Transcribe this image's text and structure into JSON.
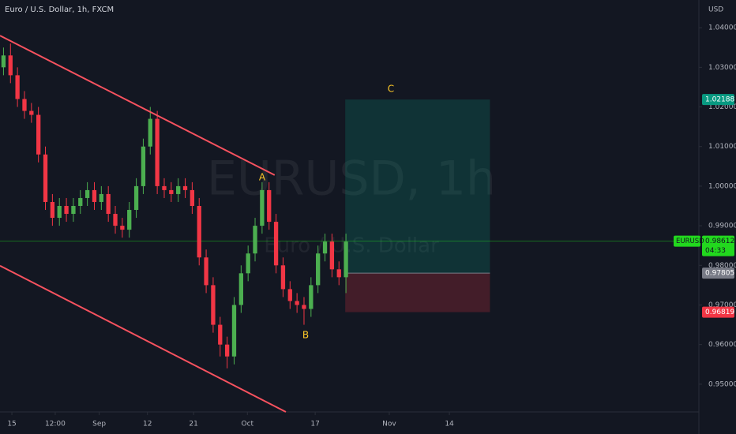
{
  "chart_data": {
    "type": "candlestick",
    "title": "Euro / U.S. Dollar, 1h, FXCM",
    "watermark": "EURUSD, 1h",
    "watermark_subtitle": "Euro / U.S. Dollar",
    "y_axis_unit": "USD",
    "x": [
      0,
      1,
      2,
      3,
      4,
      5,
      6,
      7,
      8,
      9,
      10,
      11,
      12,
      13,
      14,
      15,
      16,
      17,
      18,
      19,
      20,
      21,
      22,
      23,
      24,
      25,
      26,
      27,
      28,
      29,
      30,
      31,
      32,
      33,
      34,
      35,
      36,
      37,
      38,
      39,
      40,
      41,
      42,
      43,
      44,
      45,
      46,
      47,
      48,
      49
    ],
    "open": [
      1.03,
      1.033,
      1.028,
      1.022,
      1.019,
      1.018,
      1.008,
      0.996,
      0.992,
      0.995,
      0.993,
      0.995,
      0.997,
      0.999,
      0.996,
      0.998,
      0.993,
      0.99,
      0.989,
      0.994,
      1.0,
      1.01,
      1.017,
      1.0,
      0.999,
      0.998,
      1.0,
      0.999,
      0.995,
      0.982,
      0.975,
      0.965,
      0.96,
      0.957,
      0.97,
      0.978,
      0.983,
      0.99,
      0.999,
      0.991,
      0.98,
      0.974,
      0.971,
      0.97,
      0.969,
      0.975,
      0.983,
      0.986,
      0.979,
      0.977
    ],
    "high": [
      1.035,
      1.036,
      1.03,
      1.024,
      1.021,
      1.02,
      1.01,
      0.998,
      0.997,
      0.997,
      0.997,
      0.999,
      1.001,
      1.001,
      1.0,
      1.0,
      0.995,
      0.992,
      0.996,
      1.002,
      1.012,
      1.02,
      1.019,
      1.002,
      1.001,
      1.002,
      1.002,
      1.001,
      0.997,
      0.984,
      0.977,
      0.967,
      0.962,
      0.972,
      0.98,
      0.985,
      0.992,
      1.001,
      1.001,
      0.993,
      0.982,
      0.976,
      0.973,
      0.972,
      0.977,
      0.985,
      0.988,
      0.988,
      0.981,
      0.988
    ],
    "low": [
      1.028,
      1.026,
      1.02,
      1.017,
      1.016,
      1.006,
      0.994,
      0.99,
      0.99,
      0.991,
      0.991,
      0.993,
      0.995,
      0.994,
      0.994,
      0.991,
      0.988,
      0.987,
      0.987,
      0.992,
      0.998,
      1.008,
      0.998,
      0.997,
      0.996,
      0.996,
      0.997,
      0.993,
      0.98,
      0.973,
      0.963,
      0.957,
      0.954,
      0.955,
      0.968,
      0.976,
      0.981,
      0.988,
      0.989,
      0.978,
      0.972,
      0.969,
      0.968,
      0.965,
      0.967,
      0.973,
      0.981,
      0.977,
      0.975,
      0.973
    ],
    "close": [
      1.033,
      1.028,
      1.022,
      1.019,
      1.018,
      1.008,
      0.996,
      0.992,
      0.995,
      0.993,
      0.995,
      0.997,
      0.999,
      0.996,
      0.998,
      0.993,
      0.99,
      0.989,
      0.994,
      1.0,
      1.01,
      1.017,
      1.0,
      0.999,
      0.998,
      1.0,
      0.999,
      0.995,
      0.982,
      0.975,
      0.965,
      0.96,
      0.957,
      0.97,
      0.978,
      0.983,
      0.99,
      0.999,
      0.991,
      0.98,
      0.974,
      0.971,
      0.97,
      0.969,
      0.975,
      0.983,
      0.986,
      0.979,
      0.977,
      0.986
    ],
    "up_color": "#4caf50",
    "down_color": "#f23645",
    "xlim": [
      -0.5,
      99.5
    ],
    "ylim": [
      0.943,
      1.047
    ],
    "yticks": [
      {
        "value": 0.95,
        "label": "0.95000"
      },
      {
        "value": 0.96,
        "label": "0.96000"
      },
      {
        "value": 0.97,
        "label": "0.97000"
      },
      {
        "value": 0.98,
        "label": "0.98000"
      },
      {
        "value": 0.99,
        "label": "0.99000"
      },
      {
        "value": 1.0,
        "label": "1.00000"
      },
      {
        "value": 1.01,
        "label": "1.01000"
      },
      {
        "value": 1.02,
        "label": "1.02000"
      },
      {
        "value": 1.03,
        "label": "1.03000"
      },
      {
        "value": 1.04,
        "label": "1.04000"
      }
    ],
    "xticks": [
      {
        "value": 1.2,
        "label": "15"
      },
      {
        "value": 7.4,
        "label": "12:00"
      },
      {
        "value": 13.7,
        "label": "Sep"
      },
      {
        "value": 20.6,
        "label": "12"
      },
      {
        "value": 27.2,
        "label": "21"
      },
      {
        "value": 34.9,
        "label": "Oct"
      },
      {
        "value": 44.6,
        "label": "17"
      },
      {
        "value": 55.2,
        "label": "Nov"
      },
      {
        "value": 63.8,
        "label": "14"
      }
    ],
    "trendlines": [
      {
        "color": "#f7525f",
        "points": [
          [
            -0.5,
            1.038
          ],
          [
            38.8,
            1.0028
          ]
        ]
      },
      {
        "color": "#f7525f",
        "points": [
          [
            -0.5,
            0.9799
          ],
          [
            40.4,
            0.943
          ]
        ]
      }
    ],
    "position": {
      "x": [
        48.9,
        69.6
      ],
      "target": 1.02188,
      "entry": 0.97805,
      "stop": 0.96819,
      "profit_color": "#089981",
      "loss_color": "#f23645",
      "entry_color": "#787b86"
    },
    "last_price": 0.98612,
    "last_price_color": "#22d81e",
    "symbol": "EURUSD",
    "countdown": "04:33",
    "annotations": [
      "A",
      "B",
      "C"
    ],
    "annotation_color": "#ffca28"
  }
}
